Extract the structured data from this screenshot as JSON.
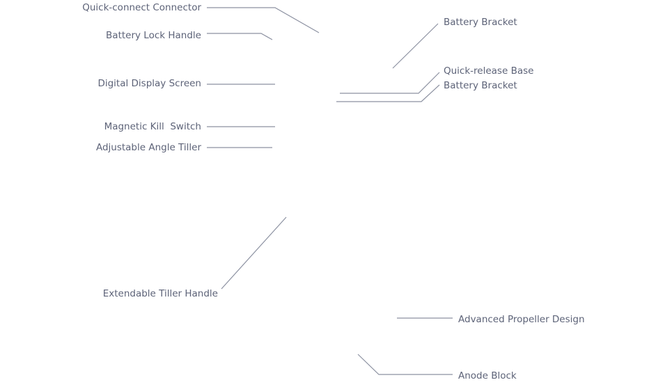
{
  "colors": {
    "label": "#5d6378",
    "leader_line": "#8c91a1",
    "background": "#ffffff"
  },
  "callouts": {
    "left": [
      "Quick-connect Connector",
      "Battery Lock Handle",
      "Digital Display Screen",
      "Magnetic Kill  Switch",
      "Adjustable Angle Tiller",
      "Extendable Tiller Handle"
    ],
    "right": [
      "Battery Bracket",
      "Quick-release Base",
      "Battery Bracket",
      "Advanced Propeller Design",
      "Anode Block"
    ]
  }
}
